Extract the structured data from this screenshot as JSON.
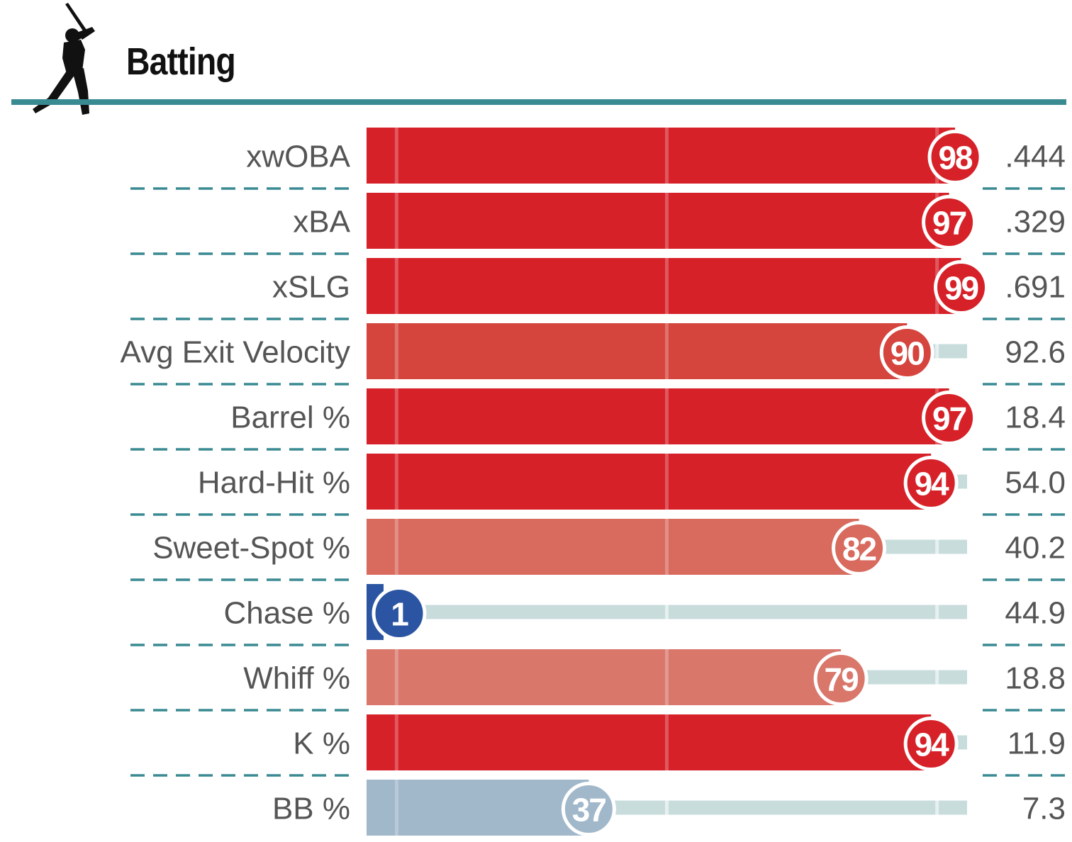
{
  "header": {
    "title": "Batting",
    "icon": "batter-silhouette-icon",
    "rule_color": "#3a8a92"
  },
  "colors": {
    "elite_red": "#d62128",
    "high_red": "#d5443d",
    "mid_red": "#d86a5e",
    "mid_red_light": "#d9776b",
    "low_blue": "#a1b8cb",
    "worst_blue": "#2b55a2",
    "track": "#c8dcdc",
    "separator": "#3a8a92"
  },
  "chart_data": {
    "type": "bar",
    "title": "Batting",
    "xlim": [
      0,
      100
    ],
    "reference_lines": [
      5,
      50,
      95
    ],
    "categories": [
      "xwOBA",
      "xBA",
      "xSLG",
      "Avg Exit Velocity",
      "Barrel %",
      "Hard-Hit %",
      "Sweet-Spot %",
      "Chase %",
      "Whiff %",
      "K %",
      "BB %"
    ],
    "series": [
      {
        "values": [
          98,
          97,
          99,
          90,
          97,
          94,
          82,
          1,
          79,
          94,
          37
        ]
      }
    ],
    "stat_values": [
      ".444",
      ".329",
      ".691",
      "92.6",
      "18.4",
      "54.0",
      "40.2",
      "44.9",
      "18.8",
      "11.9",
      "7.3"
    ],
    "bar_colors": [
      "#d62128",
      "#d62128",
      "#d62128",
      "#d5443d",
      "#d62128",
      "#d62128",
      "#d86a5e",
      "#2b55a2",
      "#d9776b",
      "#d62128",
      "#a1b8cb"
    ]
  }
}
